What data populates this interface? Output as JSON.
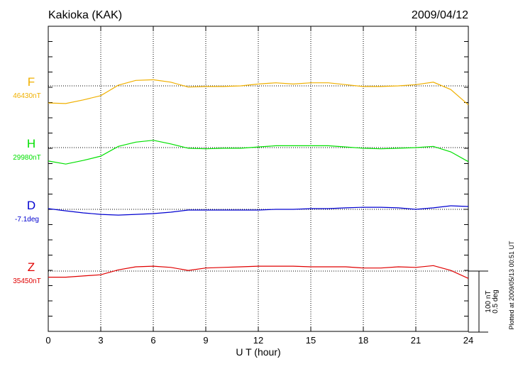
{
  "chart_data": {
    "type": "line",
    "title": "Kakioka (KAK)",
    "date": "2009/04/12",
    "xlabel": "U T (hour)",
    "footnote": "Plotted at 2009/05/13 00:51 UT",
    "scale_bar": {
      "nT": 100,
      "deg": 0.5,
      "labels": [
        "100 nT",
        "0.5 deg"
      ]
    },
    "xlim": [
      0,
      24
    ],
    "xticks": [
      0,
      3,
      6,
      9,
      12,
      15,
      18,
      21,
      24
    ],
    "grid": true,
    "x": [
      0,
      1,
      2,
      3,
      4,
      5,
      6,
      7,
      8,
      9,
      10,
      11,
      12,
      13,
      14,
      15,
      16,
      17,
      18,
      19,
      20,
      21,
      22,
      23,
      24
    ],
    "series": [
      {
        "name": "F",
        "baseline_label": "46430nT",
        "unit": "nT",
        "color": "#f0b000",
        "values": [
          -28,
          -29,
          -23,
          -16,
          1,
          9,
          10,
          6,
          -2,
          -1,
          -1,
          0,
          3,
          5,
          3,
          5,
          5,
          2,
          -1,
          -1,
          0,
          2,
          6,
          -6,
          -31
        ]
      },
      {
        "name": "H",
        "baseline_label": "29980nT",
        "unit": "nT",
        "color": "#00e000",
        "values": [
          -22,
          -27,
          -21,
          -14,
          2,
          9,
          12,
          6,
          -1,
          -2,
          -1,
          -1,
          1,
          3,
          3,
          3,
          3,
          1,
          -1,
          -2,
          -1,
          0,
          2,
          -7,
          -23
        ]
      },
      {
        "name": "D",
        "baseline_label": "-7.1deg",
        "unit": "deg",
        "color": "#0000d0",
        "values": [
          0.006,
          -0.012,
          -0.029,
          -0.041,
          -0.047,
          -0.041,
          -0.035,
          -0.023,
          -0.006,
          -0.006,
          -0.006,
          -0.006,
          -0.006,
          0,
          0,
          0.006,
          0.006,
          0.012,
          0.017,
          0.017,
          0.012,
          0,
          0.012,
          0.029,
          0.023
        ]
      },
      {
        "name": "Z",
        "baseline_label": "35450nT",
        "unit": "nT",
        "color": "#e00000",
        "values": [
          -10,
          -10,
          -8,
          -6,
          2,
          7,
          8,
          6,
          1,
          5,
          6,
          7,
          8,
          8,
          8,
          7,
          7,
          7,
          5,
          5,
          7,
          6,
          9,
          1,
          -12
        ]
      }
    ]
  }
}
